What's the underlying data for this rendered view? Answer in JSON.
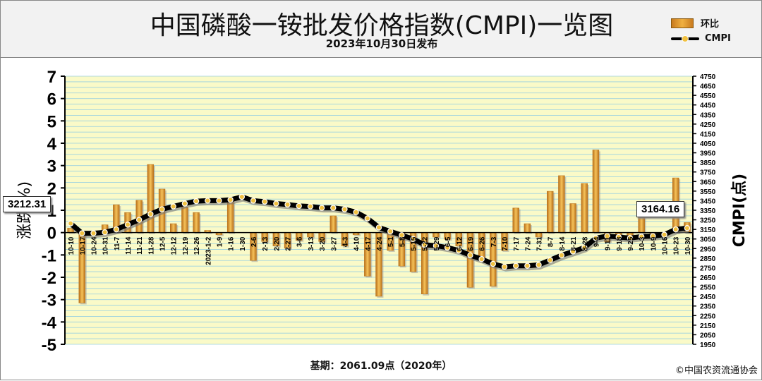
{
  "header": {
    "title": "中国磷酸一铵批发价格指数(CMPI)一览图",
    "subtitle": "2023年10月30日发布"
  },
  "legend": {
    "bar_label": "环比",
    "line_label": "CMPI"
  },
  "callouts": {
    "start_value": "3212.31",
    "end_value": "3164.16"
  },
  "footer": {
    "base_note": "基期：2061.09点（2020年）",
    "copyright": "©中国农资流通协会"
  },
  "colors": {
    "bar": "#e8a030",
    "bar_dark": "#b8701a",
    "line": "#000000",
    "marker": "#f0c040",
    "grid_band": "#fafac8",
    "grid_line": "#9ad0e0"
  },
  "chart_data": {
    "type": "bar+line",
    "y_left": {
      "label": "涨跌(%)",
      "range": [
        -5,
        7
      ],
      "ticks": [
        "7",
        "6",
        "5",
        "4",
        "3",
        "2",
        "1",
        "0",
        "-1",
        "-2",
        "-3",
        "-4",
        "-5"
      ]
    },
    "y_right": {
      "label": "CMPI(点)",
      "range": [
        1950,
        4750
      ],
      "ticks": [
        "4750",
        "4650",
        "4550",
        "4450",
        "4350",
        "4250",
        "4150",
        "4050",
        "3950",
        "3850",
        "3750",
        "3650",
        "3550",
        "3450",
        "3350",
        "3250",
        "3150",
        "3050",
        "2950",
        "2850",
        "2750",
        "2650",
        "2550",
        "2450",
        "2350",
        "2250",
        "2150",
        "2050",
        "1950"
      ]
    },
    "categories": [
      "10-10",
      "10-17",
      "10-24",
      "10-31",
      "11-7",
      "11-14",
      "11-21",
      "11-28",
      "12-5",
      "12-12",
      "12-19",
      "12-26",
      "2023-1-2",
      "1-9",
      "1-16",
      "1-30",
      "2-6",
      "2-13",
      "2-20",
      "2-27",
      "3-6",
      "3-13",
      "3-20",
      "3-27",
      "4-3",
      "4-10",
      "4-17",
      "4-24",
      "5-1",
      "5-8",
      "5-15",
      "5-22",
      "5-29",
      "6-5",
      "6-12",
      "6-19",
      "6-26",
      "7-3",
      "7-10",
      "7-17",
      "7-24",
      "7-31",
      "8-7",
      "8-14",
      "8-21",
      "8-28",
      "9-4",
      "9-11",
      "9-18",
      "9-25",
      "10-3",
      "10-9",
      "10-16",
      "10-23",
      "10-30"
    ],
    "series": [
      {
        "name": "环比",
        "values": [
          0.2,
          -3.15,
          0.0,
          0.35,
          1.25,
          0.9,
          1.45,
          3.05,
          1.95,
          0.4,
          1.15,
          0.9,
          0.1,
          -0.1,
          1.4,
          0.0,
          -1.25,
          -0.4,
          -0.6,
          -0.7,
          -0.35,
          -0.2,
          -0.4,
          0.75,
          -0.6,
          -0.1,
          -1.95,
          -2.85,
          -0.8,
          -1.5,
          -1.75,
          -2.75,
          -0.2,
          -0.3,
          -0.6,
          -2.45,
          -1.2,
          -2.4,
          -0.8,
          1.1,
          0.4,
          -0.2,
          1.85,
          2.55,
          1.3,
          2.2,
          3.7,
          -0.4,
          -0.3,
          -0.2,
          0.8,
          -0.1,
          0.0,
          2.45,
          0.45
        ]
      },
      {
        "name": "CMPI",
        "values": [
          3212.31,
          3110,
          3110,
          3120,
          3150,
          3200,
          3250,
          3310,
          3360,
          3390,
          3420,
          3445,
          3450,
          3450,
          3460,
          3490,
          3450,
          3440,
          3420,
          3410,
          3395,
          3390,
          3375,
          3375,
          3360,
          3330,
          3265,
          3170,
          3130,
          3090,
          3050,
          2990,
          2980,
          2960,
          2930,
          2880,
          2840,
          2790,
          2760,
          2770,
          2770,
          2780,
          2830,
          2880,
          2920,
          2960,
          3060,
          3080,
          3070,
          3060,
          3075,
          3080,
          3095,
          3150,
          3164.16
        ]
      }
    ],
    "grid": true,
    "legend_position": "top-right"
  }
}
